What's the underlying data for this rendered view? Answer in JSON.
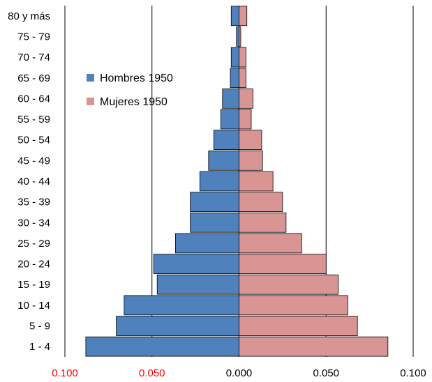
{
  "chart_data": {
    "type": "bar",
    "orientation": "horizontal",
    "subtype": "population-pyramid",
    "categories": [
      "80 y más",
      "75 - 79",
      "70 - 74",
      "65 - 69",
      "60 - 64",
      "55 - 59",
      "50 - 54",
      "45 - 49",
      "40 - 44",
      "35 - 39",
      "30 - 34",
      "25 - 29",
      "20 - 24",
      "15 - 19",
      "10 - 14",
      "5 - 9",
      "1 - 4"
    ],
    "series": [
      {
        "name": "Hombres 1950",
        "color": "#4f81bd",
        "side": "left",
        "values": [
          0.0045,
          0.0015,
          0.0045,
          0.005,
          0.0095,
          0.0105,
          0.0145,
          0.0175,
          0.0225,
          0.028,
          0.028,
          0.0365,
          0.049,
          0.047,
          0.066,
          0.0705,
          0.088
        ]
      },
      {
        "name": "Mujeres 1950",
        "color": "#d99594",
        "side": "right",
        "values": [
          0.0045,
          0.001,
          0.004,
          0.004,
          0.008,
          0.007,
          0.013,
          0.0135,
          0.0195,
          0.025,
          0.027,
          0.036,
          0.05,
          0.057,
          0.0625,
          0.068,
          0.0855
        ]
      }
    ],
    "x_ticks": [
      "0.100",
      "0.050",
      "0.000",
      "0.050",
      "0.100"
    ],
    "x_tick_colors": [
      "#ff0000",
      "#ff0000",
      "#000000",
      "#000000",
      "#000000"
    ],
    "xlim": [
      -0.1,
      0.1
    ],
    "gridlines": "vertical",
    "legend_position": "upper-left-inside"
  }
}
